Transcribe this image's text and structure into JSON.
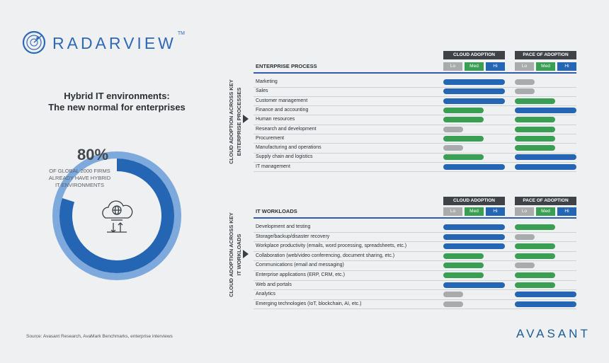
{
  "brand": {
    "name": "RADARVIEW",
    "tm": "TM",
    "footer_logo": "AVASANT"
  },
  "headline": {
    "line1": "Hybrid IT environments:",
    "line2": "The new normal for enterprises"
  },
  "stat": {
    "percent_label": "80%",
    "percent": 80,
    "desc_line1": "OF GLOBAL 2000 FIRMS",
    "desc_line2": "ALREADY HAVE HYBRID",
    "desc_line3": "IT ENVIRONMENTS"
  },
  "source": "Source: Avasant Research, AvaMark Benchmarks, enterprise interviews",
  "legend": {
    "cloud_adoption": "CLOUD ADOPTION",
    "pace_of_adoption": "PACE OF ADOPTION",
    "lo": "Lo",
    "med": "Med",
    "hi": "Hi"
  },
  "colors": {
    "lo": "#a9abad",
    "med": "#3a9e53",
    "hi": "#2466b4",
    "donut_outer": "#7ea9dc",
    "donut_inner": "#2466b4"
  },
  "chart_data": [
    {
      "type": "bar",
      "section_title": "ENTERPRISE PROCESS",
      "side_label_line1": "CLOUD ADOPTION ACROSS KEY",
      "side_label_line2": "ENTERPRISE PROCESSES",
      "scale": [
        "Lo",
        "Med",
        "Hi"
      ],
      "categories": [
        "Marketing",
        "Sales",
        "Customer management",
        "Finance and accounting",
        "Human resources",
        "Research and development",
        "Procurement",
        "Manufacturing and operations",
        "Supply chain and logistics",
        "IT management"
      ],
      "series": [
        {
          "name": "CLOUD ADOPTION",
          "values": [
            "Hi",
            "Hi",
            "Hi",
            "Med",
            "Med",
            "Lo",
            "Med",
            "Lo",
            "Med",
            "Hi"
          ]
        },
        {
          "name": "PACE OF ADOPTION",
          "values": [
            "Lo",
            "Lo",
            "Med",
            "Hi",
            "Med",
            "Med",
            "Med",
            "Med",
            "Hi",
            "Hi"
          ]
        }
      ]
    },
    {
      "type": "bar",
      "section_title": "IT WORKLOADS",
      "side_label_line1": "CLOUD ADOPTION ACROSS KEY",
      "side_label_line2": "IT WORKLOADS",
      "scale": [
        "Lo",
        "Med",
        "Hi"
      ],
      "categories": [
        "Development and testing",
        "Storage/backup/disaster recovery",
        "Workplace productivity (emails, word processing, spreadsheets, etc.)",
        "Collaboration (web/video conferencing, document sharing, etc.)",
        "Communications (email and messaging)",
        "Enterprise applications (ERP, CRM, etc.)",
        "Web and portals",
        "Analytics",
        "Emerging technologies (IoT, blockchain, AI, etc.)"
      ],
      "series": [
        {
          "name": "CLOUD ADOPTION",
          "values": [
            "Hi",
            "Hi",
            "Hi",
            "Med",
            "Med",
            "Med",
            "Hi",
            "Lo",
            "Lo"
          ]
        },
        {
          "name": "PACE OF ADOPTION",
          "values": [
            "Med",
            "Lo",
            "Med",
            "Med",
            "Lo",
            "Med",
            "Med",
            "Hi",
            "Hi"
          ]
        }
      ]
    }
  ]
}
